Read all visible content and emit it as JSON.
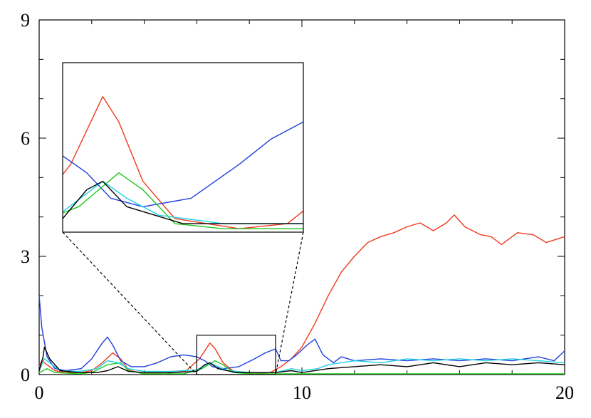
{
  "chart_data": {
    "type": "line",
    "title": "",
    "xlabel": "",
    "ylabel": "",
    "xlim": [
      0,
      20
    ],
    "ylim": [
      0,
      9
    ],
    "x_ticks": [
      0,
      10,
      20
    ],
    "y_ticks": [
      0,
      3,
      6,
      9
    ],
    "x_tick_labels": [
      "0",
      "10",
      "20"
    ],
    "y_tick_labels": [
      "0",
      "3",
      "6",
      "9"
    ],
    "x_minor_step": 2,
    "y_minor_step": 1,
    "grid": false,
    "legend": "none",
    "series": [
      {
        "color": "#f03a1e",
        "points": [
          [
            0,
            0.2
          ],
          [
            0.1,
            0.35
          ],
          [
            0.3,
            0.25
          ],
          [
            0.6,
            0.1
          ],
          [
            1,
            0.05
          ],
          [
            1.6,
            0.05
          ],
          [
            2,
            0.1
          ],
          [
            2.4,
            0.3
          ],
          [
            2.8,
            0.55
          ],
          [
            3.1,
            0.4
          ],
          [
            3.4,
            0.12
          ],
          [
            3.9,
            0.03
          ],
          [
            4.8,
            0.02
          ],
          [
            5.6,
            0.1
          ],
          [
            6.1,
            0.4
          ],
          [
            6.5,
            0.8
          ],
          [
            6.7,
            0.65
          ],
          [
            7,
            0.3
          ],
          [
            7.4,
            0.08
          ],
          [
            8.2,
            0.02
          ],
          [
            8.8,
            0.05
          ],
          [
            9.2,
            0.2
          ],
          [
            9.6,
            0.4
          ],
          [
            10,
            0.7
          ],
          [
            10.5,
            1.3
          ],
          [
            11,
            2.0
          ],
          [
            11.5,
            2.6
          ],
          [
            12,
            3.0
          ],
          [
            12.5,
            3.35
          ],
          [
            13,
            3.5
          ],
          [
            13.5,
            3.6
          ],
          [
            14,
            3.75
          ],
          [
            14.5,
            3.85
          ],
          [
            15,
            3.65
          ],
          [
            15.5,
            3.85
          ],
          [
            15.8,
            4.05
          ],
          [
            16.2,
            3.75
          ],
          [
            16.8,
            3.55
          ],
          [
            17.2,
            3.5
          ],
          [
            17.6,
            3.3
          ],
          [
            18.2,
            3.6
          ],
          [
            18.8,
            3.55
          ],
          [
            19.3,
            3.35
          ],
          [
            20,
            3.5
          ]
        ]
      },
      {
        "color": "#1f3fdc",
        "points": [
          [
            0,
            2.0
          ],
          [
            0.1,
            1.2
          ],
          [
            0.3,
            0.45
          ],
          [
            0.6,
            0.15
          ],
          [
            1,
            0.1
          ],
          [
            1.6,
            0.15
          ],
          [
            2,
            0.4
          ],
          [
            2.4,
            0.8
          ],
          [
            2.6,
            0.95
          ],
          [
            2.8,
            0.75
          ],
          [
            3.1,
            0.35
          ],
          [
            3.5,
            0.2
          ],
          [
            4,
            0.2
          ],
          [
            4.5,
            0.3
          ],
          [
            5,
            0.45
          ],
          [
            5.5,
            0.5
          ],
          [
            6,
            0.45
          ],
          [
            6.3,
            0.35
          ],
          [
            6.6,
            0.2
          ],
          [
            7,
            0.15
          ],
          [
            7.6,
            0.2
          ],
          [
            8.2,
            0.4
          ],
          [
            8.6,
            0.55
          ],
          [
            9,
            0.65
          ],
          [
            9.2,
            0.35
          ],
          [
            9.5,
            0.35
          ],
          [
            9.8,
            0.5
          ],
          [
            10.2,
            0.75
          ],
          [
            10.5,
            0.9
          ],
          [
            10.8,
            0.5
          ],
          [
            11.2,
            0.3
          ],
          [
            11.5,
            0.45
          ],
          [
            12,
            0.35
          ],
          [
            13,
            0.4
          ],
          [
            14,
            0.35
          ],
          [
            15,
            0.4
          ],
          [
            16,
            0.35
          ],
          [
            17,
            0.4
          ],
          [
            18,
            0.35
          ],
          [
            19,
            0.45
          ],
          [
            19.6,
            0.35
          ],
          [
            20,
            0.6
          ]
        ]
      },
      {
        "color": "#1ec81e",
        "points": [
          [
            0,
            0.05
          ],
          [
            0.3,
            0.15
          ],
          [
            0.6,
            0.05
          ],
          [
            1.5,
            0.02
          ],
          [
            2,
            0.05
          ],
          [
            2.6,
            0.25
          ],
          [
            3.1,
            0.3
          ],
          [
            3.4,
            0.1
          ],
          [
            4,
            0.02
          ],
          [
            5.5,
            0.02
          ],
          [
            6.2,
            0.15
          ],
          [
            6.7,
            0.35
          ],
          [
            7,
            0.25
          ],
          [
            7.4,
            0.05
          ],
          [
            8,
            0.02
          ],
          [
            9,
            0.02
          ],
          [
            20,
            0.02
          ]
        ]
      },
      {
        "color": "#1ed2e6",
        "points": [
          [
            0,
            0.1
          ],
          [
            0.2,
            0.4
          ],
          [
            0.4,
            0.3
          ],
          [
            0.8,
            0.1
          ],
          [
            1.5,
            0.08
          ],
          [
            2.2,
            0.15
          ],
          [
            2.6,
            0.35
          ],
          [
            3,
            0.3
          ],
          [
            3.4,
            0.15
          ],
          [
            4,
            0.08
          ],
          [
            5,
            0.08
          ],
          [
            6,
            0.12
          ],
          [
            6.5,
            0.3
          ],
          [
            6.8,
            0.2
          ],
          [
            7.2,
            0.1
          ],
          [
            8,
            0.05
          ],
          [
            9,
            0.05
          ],
          [
            9.6,
            0.15
          ],
          [
            10,
            0.1
          ],
          [
            10.6,
            0.15
          ],
          [
            11,
            0.25
          ],
          [
            12,
            0.35
          ],
          [
            13,
            0.3
          ],
          [
            14,
            0.4
          ],
          [
            15,
            0.35
          ],
          [
            16,
            0.4
          ],
          [
            17,
            0.35
          ],
          [
            18,
            0.4
          ],
          [
            19,
            0.35
          ],
          [
            20,
            0.3
          ]
        ]
      },
      {
        "color": "#000000",
        "points": [
          [
            0,
            0.1
          ],
          [
            0.15,
            0.45
          ],
          [
            0.2,
            0.7
          ],
          [
            0.4,
            0.4
          ],
          [
            0.8,
            0.1
          ],
          [
            1.5,
            0.05
          ],
          [
            2.2,
            0.05
          ],
          [
            2.6,
            0.1
          ],
          [
            3,
            0.2
          ],
          [
            3.4,
            0.08
          ],
          [
            4,
            0.05
          ],
          [
            5,
            0.05
          ],
          [
            6,
            0.08
          ],
          [
            6.3,
            0.25
          ],
          [
            6.5,
            0.3
          ],
          [
            6.8,
            0.15
          ],
          [
            7.5,
            0.05
          ],
          [
            9,
            0.05
          ],
          [
            9.6,
            0.1
          ],
          [
            10,
            0.05
          ],
          [
            11,
            0.15
          ],
          [
            12,
            0.2
          ],
          [
            13,
            0.25
          ],
          [
            14,
            0.2
          ],
          [
            15,
            0.3
          ],
          [
            16,
            0.2
          ],
          [
            17,
            0.3
          ],
          [
            18,
            0.25
          ],
          [
            19,
            0.3
          ],
          [
            20,
            0.25
          ]
        ]
      }
    ],
    "inset": {
      "source_xlim": [
        6,
        9
      ],
      "source_ylim": [
        0,
        1
      ]
    }
  }
}
